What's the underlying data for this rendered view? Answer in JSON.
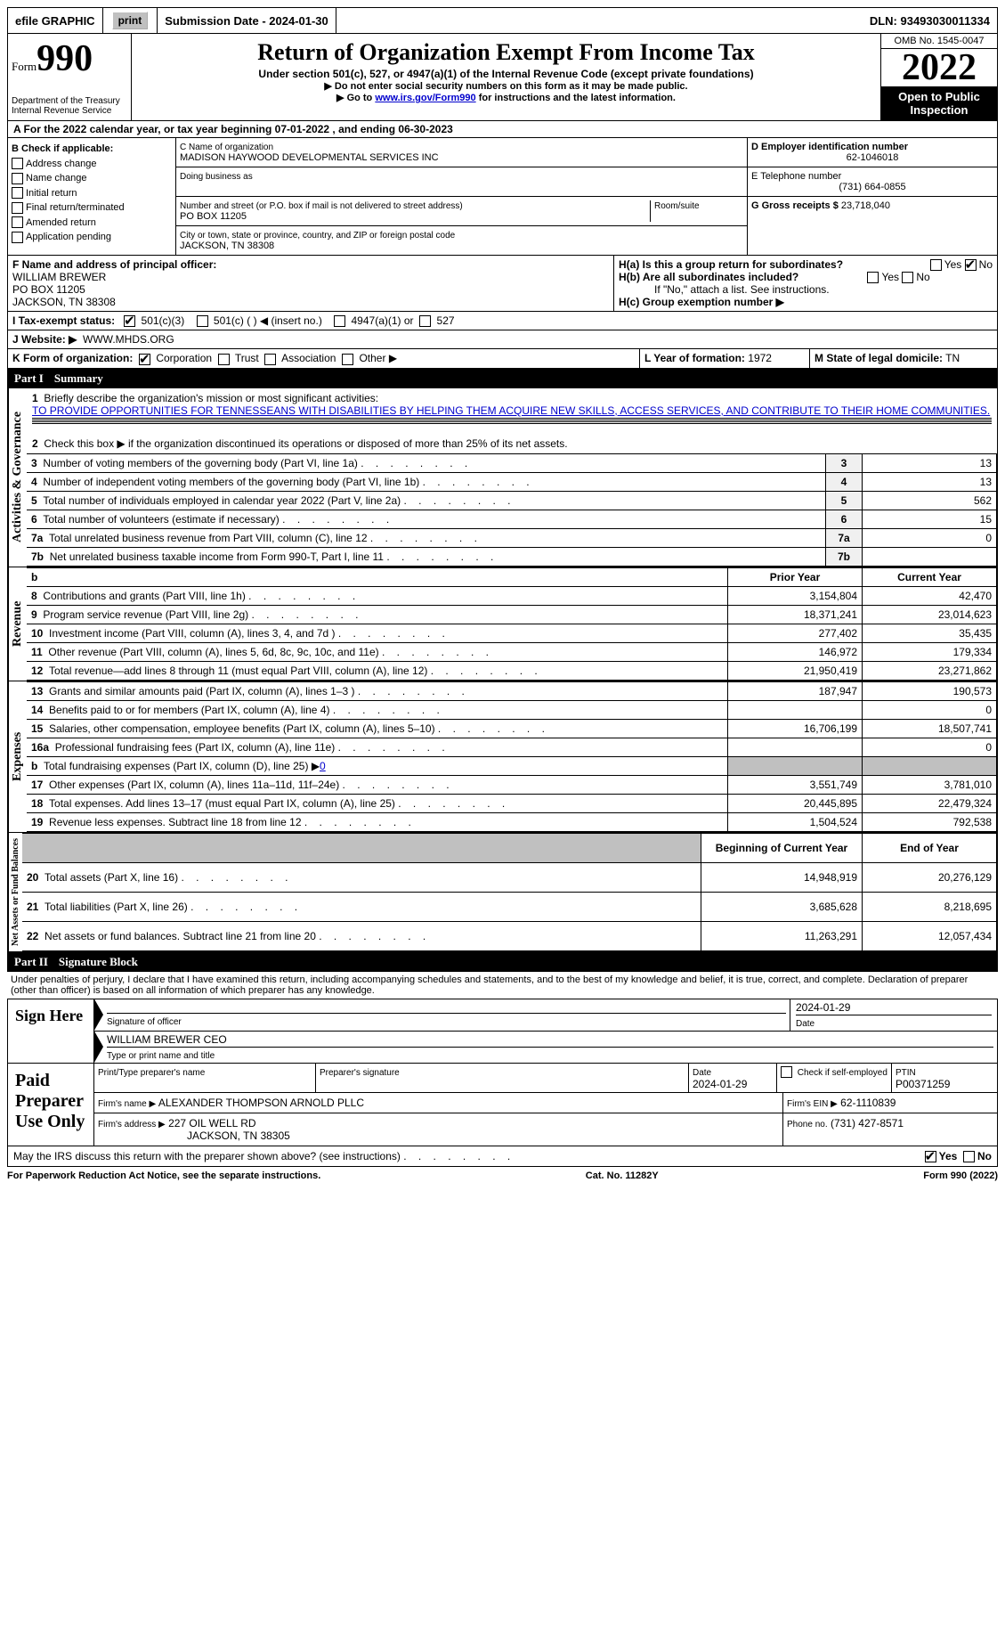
{
  "topbar": {
    "efile_label": "efile GRAPHIC",
    "print_label": "print",
    "submission_label": "Submission Date - 2024-01-30",
    "dln_label": "DLN: 93493030011334"
  },
  "header": {
    "form_word": "Form",
    "form_number": "990",
    "dept": "Department of the Treasury",
    "irs": "Internal Revenue Service",
    "title": "Return of Organization Exempt From Income Tax",
    "subtitle": "Under section 501(c), 527, or 4947(a)(1) of the Internal Revenue Code (except private foundations)",
    "note1": "▶ Do not enter social security numbers on this form as it may be made public.",
    "note2_pre": "▶ Go to ",
    "note2_link": "www.irs.gov/Form990",
    "note2_post": " for instructions and the latest information.",
    "omb": "OMB No. 1545-0047",
    "year": "2022",
    "open": "Open to Public Inspection"
  },
  "period": {
    "text_a": "A For the 2022 calendar year, or tax year beginning ",
    "begin": "07-01-2022",
    "text_b": " , and ending ",
    "end": "06-30-2023"
  },
  "boxB": {
    "title": "B Check if applicable:",
    "items": [
      "Address change",
      "Name change",
      "Initial return",
      "Final return/terminated",
      "Amended return",
      "Application pending"
    ]
  },
  "boxC": {
    "label": "C Name of organization",
    "name": "MADISON HAYWOOD DEVELOPMENTAL SERVICES INC",
    "dba_label": "Doing business as",
    "street_label": "Number and street (or P.O. box if mail is not delivered to street address)",
    "room_label": "Room/suite",
    "street": "PO BOX 11205",
    "city_label": "City or town, state or province, country, and ZIP or foreign postal code",
    "city": "JACKSON, TN  38308"
  },
  "boxD": {
    "label": "D Employer identification number",
    "value": "62-1046018"
  },
  "boxE": {
    "label": "E Telephone number",
    "value": "(731) 664-0855"
  },
  "boxG": {
    "label": "G Gross receipts $",
    "value": "23,718,040"
  },
  "boxF": {
    "label": "F Name and address of principal officer:",
    "name": "WILLIAM BREWER",
    "addr1": "PO BOX 11205",
    "addr2": "JACKSON, TN  38308"
  },
  "boxH": {
    "a": "H(a)  Is this a group return for subordinates?",
    "b": "H(b)  Are all subordinates included?",
    "b_note": "If \"No,\" attach a list. See instructions.",
    "c": "H(c)  Group exemption number ▶",
    "yes": "Yes",
    "no": "No"
  },
  "boxI": {
    "label": "I   Tax-exempt status:",
    "o1": "501(c)(3)",
    "o2": "501(c) (   ) ◀ (insert no.)",
    "o3": "4947(a)(1) or",
    "o4": "527"
  },
  "boxJ": {
    "label": "J   Website: ▶",
    "value": "WWW.MHDS.ORG"
  },
  "boxK": {
    "label": "K Form of organization:",
    "o1": "Corporation",
    "o2": "Trust",
    "o3": "Association",
    "o4": "Other ▶"
  },
  "boxL": {
    "label": "L Year of formation:",
    "value": "1972"
  },
  "boxM": {
    "label": "M State of legal domicile:",
    "value": "TN"
  },
  "part1": {
    "num": "Part I",
    "title": "Summary"
  },
  "summary": {
    "q1": "Briefly describe the organization's mission or most significant activities:",
    "mission": "TO PROVIDE OPPORTUNITIES FOR TENNESSEANS WITH DISABILITIES BY HELPING THEM ACQUIRE NEW SKILLS, ACCESS SERVICES, AND CONTRIBUTE TO THEIR HOME COMMUNITIES.",
    "q2": "Check this box ▶        if the organization discontinued its operations or disposed of more than 25% of its net assets.",
    "lines_gov": [
      {
        "n": "3",
        "t": "Number of voting members of the governing body (Part VI, line 1a)",
        "v": "13"
      },
      {
        "n": "4",
        "t": "Number of independent voting members of the governing body (Part VI, line 1b)",
        "v": "13"
      },
      {
        "n": "5",
        "t": "Total number of individuals employed in calendar year 2022 (Part V, line 2a)",
        "v": "562"
      },
      {
        "n": "6",
        "t": "Total number of volunteers (estimate if necessary)",
        "v": "15"
      },
      {
        "n": "7a",
        "t": "Total unrelated business revenue from Part VIII, column (C), line 12",
        "v": "0"
      },
      {
        "n": "7b",
        "t": "Net unrelated business taxable income from Form 990-T, Part I, line 11",
        "v": ""
      }
    ],
    "hdr_prior": "Prior Year",
    "hdr_curr": "Current Year",
    "revenue": [
      {
        "n": "8",
        "t": "Contributions and grants (Part VIII, line 1h)",
        "p": "3,154,804",
        "c": "42,470"
      },
      {
        "n": "9",
        "t": "Program service revenue (Part VIII, line 2g)",
        "p": "18,371,241",
        "c": "23,014,623"
      },
      {
        "n": "10",
        "t": "Investment income (Part VIII, column (A), lines 3, 4, and 7d )",
        "p": "277,402",
        "c": "35,435"
      },
      {
        "n": "11",
        "t": "Other revenue (Part VIII, column (A), lines 5, 6d, 8c, 9c, 10c, and 11e)",
        "p": "146,972",
        "c": "179,334"
      },
      {
        "n": "12",
        "t": "Total revenue—add lines 8 through 11 (must equal Part VIII, column (A), line 12)",
        "p": "21,950,419",
        "c": "23,271,862"
      }
    ],
    "expenses": [
      {
        "n": "13",
        "t": "Grants and similar amounts paid (Part IX, column (A), lines 1–3 )",
        "p": "187,947",
        "c": "190,573"
      },
      {
        "n": "14",
        "t": "Benefits paid to or for members (Part IX, column (A), line 4)",
        "p": "",
        "c": "0"
      },
      {
        "n": "15",
        "t": "Salaries, other compensation, employee benefits (Part IX, column (A), lines 5–10)",
        "p": "16,706,199",
        "c": "18,507,741"
      },
      {
        "n": "16a",
        "t": "Professional fundraising fees (Part IX, column (A), line 11e)",
        "p": "",
        "c": "0"
      },
      {
        "n": "b",
        "t": "Total fundraising expenses (Part IX, column (D), line 25) ▶",
        "fund": "0",
        "shade": true
      },
      {
        "n": "17",
        "t": "Other expenses (Part IX, column (A), lines 11a–11d, 11f–24e)",
        "p": "3,551,749",
        "c": "3,781,010"
      },
      {
        "n": "18",
        "t": "Total expenses. Add lines 13–17 (must equal Part IX, column (A), line 25)",
        "p": "20,445,895",
        "c": "22,479,324"
      },
      {
        "n": "19",
        "t": "Revenue less expenses. Subtract line 18 from line 12",
        "p": "1,504,524",
        "c": "792,538"
      }
    ],
    "hdr_boy": "Beginning of Current Year",
    "hdr_eoy": "End of Year",
    "net": [
      {
        "n": "20",
        "t": "Total assets (Part X, line 16)",
        "p": "14,948,919",
        "c": "20,276,129"
      },
      {
        "n": "21",
        "t": "Total liabilities (Part X, line 26)",
        "p": "3,685,628",
        "c": "8,218,695"
      },
      {
        "n": "22",
        "t": "Net assets or fund balances. Subtract line 21 from line 20",
        "p": "11,263,291",
        "c": "12,057,434"
      }
    ],
    "vlabels": {
      "gov": "Activities & Governance",
      "rev": "Revenue",
      "exp": "Expenses",
      "net": "Net Assets or Fund Balances"
    }
  },
  "part2": {
    "num": "Part II",
    "title": "Signature Block"
  },
  "sig": {
    "penalties": "Under penalties of perjury, I declare that I have examined this return, including accompanying schedules and statements, and to the best of my knowledge and belief, it is true, correct, and complete. Declaration of preparer (other than officer) is based on all information of which preparer has any knowledge.",
    "sign_here": "Sign Here",
    "sig_officer": "Signature of officer",
    "date": "Date",
    "sig_date": "2024-01-29",
    "name_title": "WILLIAM BREWER  CEO",
    "type_name": "Type or print name and title",
    "paid": "Paid Preparer Use Only",
    "prep_name_lbl": "Print/Type preparer's name",
    "prep_sig_lbl": "Preparer's signature",
    "prep_date_lbl": "Date",
    "prep_date": "2024-01-29",
    "check_self": "Check         if self-employed",
    "ptin_lbl": "PTIN",
    "ptin": "P00371259",
    "firm_name_lbl": "Firm's name    ▶",
    "firm_name": "ALEXANDER THOMPSON ARNOLD PLLC",
    "firm_ein_lbl": "Firm's EIN ▶",
    "firm_ein": "62-1110839",
    "firm_addr_lbl": "Firm's address ▶",
    "firm_addr1": "227 OIL WELL RD",
    "firm_addr2": "JACKSON, TN  38305",
    "phone_lbl": "Phone no.",
    "phone": "(731) 427-8571",
    "may_irs": "May the IRS discuss this return with the preparer shown above? (see instructions)"
  },
  "footer": {
    "left": "For Paperwork Reduction Act Notice, see the separate instructions.",
    "mid": "Cat. No. 11282Y",
    "right": "Form 990 (2022)"
  }
}
